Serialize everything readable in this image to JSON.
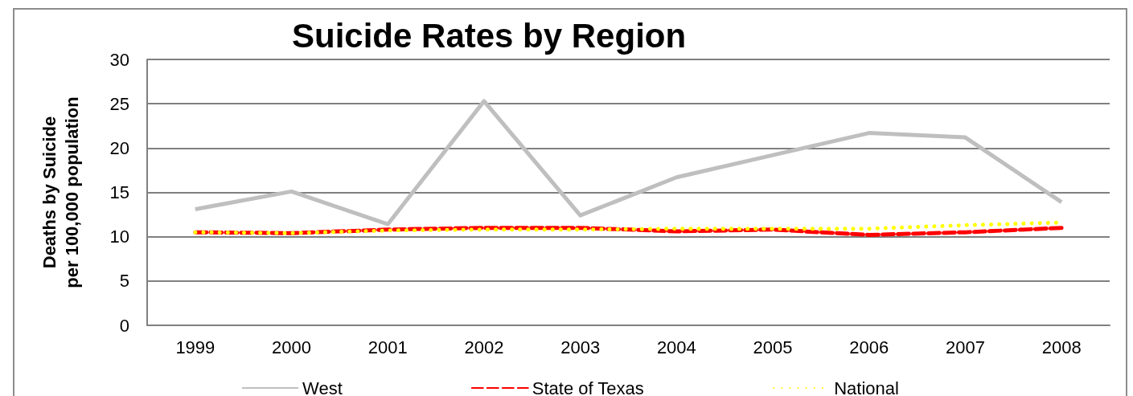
{
  "chart_data": {
    "type": "line",
    "title": "Suicide Rates by Region",
    "ylabel": "Deaths by Suicide per 100,000 population",
    "categories": [
      "1999",
      "2000",
      "2001",
      "2002",
      "2003",
      "2004",
      "2005",
      "2006",
      "2007",
      "2008"
    ],
    "series": [
      {
        "name": "West",
        "color": "#bfbfbf",
        "line_style": "solid",
        "values": [
          13.1,
          15.1,
          11.4,
          25.3,
          12.4,
          16.7,
          19.2,
          21.7,
          21.2,
          13.9
        ]
      },
      {
        "name": "State of Texas",
        "color": "#ff0000",
        "line_style": "dashed",
        "values": [
          10.5,
          10.4,
          10.8,
          11.0,
          11.0,
          10.6,
          10.8,
          10.2,
          10.5,
          11.0
        ]
      },
      {
        "name": "National",
        "color": "#ffff00",
        "line_style": "dotted",
        "values": [
          10.5,
          10.4,
          10.7,
          10.8,
          10.8,
          10.9,
          10.9,
          10.9,
          11.3,
          11.6
        ]
      }
    ],
    "ylim": [
      0,
      30
    ],
    "yticks": [
      0,
      5,
      10,
      15,
      20,
      25,
      30
    ],
    "grid": "y",
    "legend": "bottom",
    "marker": "none"
  }
}
